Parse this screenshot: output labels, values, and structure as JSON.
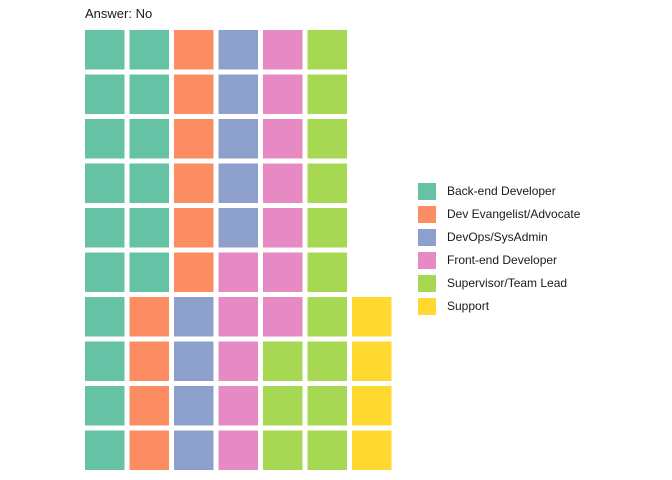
{
  "title": "Answer: No",
  "chart_data": {
    "type": "waffle",
    "title": "Answer: No",
    "rows": 10,
    "columns": 7,
    "fill_order": "column-major, top-to-bottom, bottom-aligned",
    "series": [
      {
        "name": "Back-end Developer",
        "value": 16,
        "color": "#66c2a5"
      },
      {
        "name": "Dev Evangelist/Advocate",
        "value": 10,
        "color": "#fc8d62"
      },
      {
        "name": "DevOps/SysAdmin",
        "value": 9,
        "color": "#8da0cb"
      },
      {
        "name": "Front-end Developer",
        "value": 12,
        "color": "#e78ac3"
      },
      {
        "name": "Supervisor/Team Lead",
        "value": 13,
        "color": "#a6d854"
      },
      {
        "name": "Support",
        "value": 4,
        "color": "#ffd92f"
      }
    ],
    "legend_position": "right"
  }
}
